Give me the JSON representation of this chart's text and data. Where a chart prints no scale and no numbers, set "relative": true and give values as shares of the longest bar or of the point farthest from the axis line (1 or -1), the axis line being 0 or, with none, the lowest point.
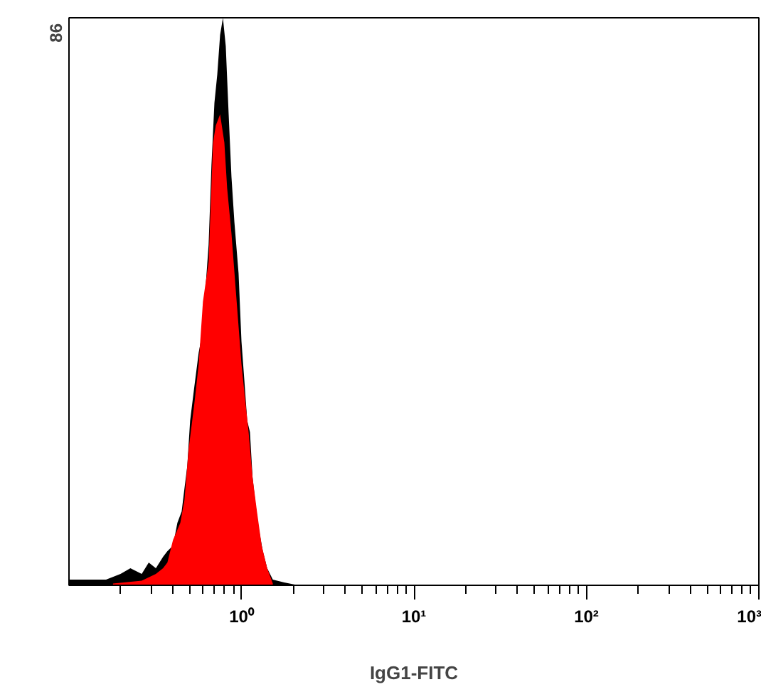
{
  "chart_data": {
    "type": "area",
    "relative": true,
    "log": "x",
    "xlabel": "IgG1-FITC",
    "annotations": [
      "86"
    ],
    "xlim": [
      0.1,
      1000
    ],
    "xticks": [
      {
        "value": 1,
        "label": "10⁰"
      },
      {
        "value": 10,
        "label": "10¹"
      },
      {
        "value": 100,
        "label": "10²"
      },
      {
        "value": 1000,
        "label": "10³"
      }
    ],
    "series": [
      {
        "color": "#000000",
        "x": [
          0.1,
          0.101,
          0.123,
          0.164,
          0.199,
          0.227,
          0.264,
          0.29,
          0.319,
          0.351,
          0.372,
          0.401,
          0.425,
          0.45,
          0.467,
          0.485,
          0.504,
          0.533,
          0.565,
          0.598,
          0.621,
          0.645,
          0.67,
          0.697,
          0.724,
          0.752,
          0.781,
          0.811,
          0.843,
          0.875,
          0.91,
          0.962,
          1.0,
          1.04,
          1.08,
          1.12,
          1.16,
          1.21,
          1.26,
          1.33,
          1.41,
          1.52,
          1.77,
          2.14
        ],
        "values": [
          0.19,
          0.01,
          0.01,
          0.01,
          0.02,
          0.03,
          0.02,
          0.04,
          0.03,
          0.05,
          0.06,
          0.07,
          0.11,
          0.13,
          0.17,
          0.21,
          0.29,
          0.35,
          0.41,
          0.45,
          0.53,
          0.6,
          0.74,
          0.85,
          0.9,
          0.97,
          1.0,
          0.95,
          0.83,
          0.72,
          0.64,
          0.55,
          0.43,
          0.36,
          0.29,
          0.27,
          0.19,
          0.14,
          0.1,
          0.06,
          0.03,
          0.01,
          0.005,
          0.0
        ]
      },
      {
        "color": "#ff0000",
        "x": [
          0.18,
          0.264,
          0.319,
          0.351,
          0.372,
          0.401,
          0.442,
          0.467,
          0.494,
          0.533,
          0.565,
          0.598,
          0.645,
          0.684,
          0.71,
          0.752,
          0.796,
          0.826,
          0.875,
          0.927,
          1.0,
          1.04,
          1.1,
          1.16,
          1.23,
          1.31,
          1.41,
          1.52
        ],
        "values": [
          0.003,
          0.008,
          0.02,
          0.03,
          0.04,
          0.08,
          0.11,
          0.15,
          0.24,
          0.32,
          0.39,
          0.5,
          0.57,
          0.78,
          0.81,
          0.83,
          0.78,
          0.7,
          0.62,
          0.52,
          0.39,
          0.34,
          0.27,
          0.19,
          0.13,
          0.07,
          0.03,
          0.003
        ]
      }
    ]
  }
}
